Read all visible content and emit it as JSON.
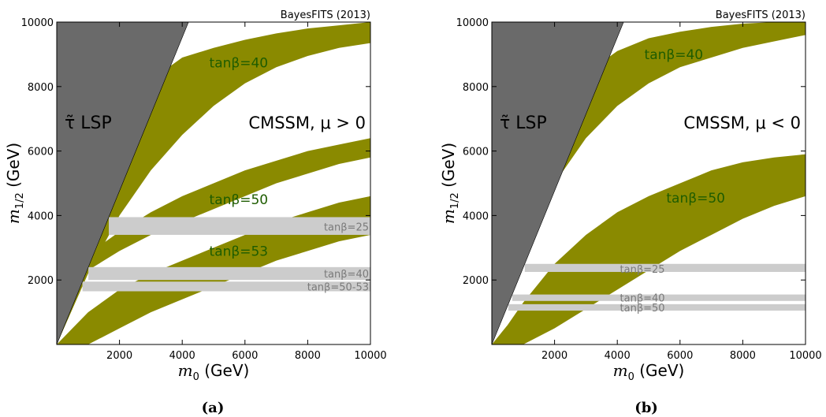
{
  "figure": {
    "source_tag": "BayesFITS (2013)",
    "xlabel": "m_0 (GeV)",
    "ylabel": "m_{1/2} (GeV)"
  },
  "colors": {
    "band": "#8a8a00",
    "band_label": "#1e5c00",
    "stau_region": "#6a6a6a",
    "gray_band": "#cccccc",
    "gray_label": "#7a7a7a"
  },
  "chart_data": [
    {
      "type": "area",
      "panel_label": "(a)",
      "scenario": "CMSSM, μ > 0",
      "xlim": [
        0,
        10000
      ],
      "ylim": [
        0,
        10000
      ],
      "xticks": [
        2000,
        4000,
        6000,
        8000,
        10000
      ],
      "yticks": [
        2000,
        4000,
        6000,
        8000,
        10000
      ],
      "stau_lsp": {
        "label": "τ̃ LSP",
        "boundary": [
          [
            0,
            0
          ],
          [
            4200,
            10000
          ]
        ]
      },
      "olive_bands": [
        {
          "label": "tanβ=40",
          "label_at": [
            5800,
            8600
          ],
          "lower": [
            [
              0,
              0
            ],
            [
              1000,
              2200
            ],
            [
              2000,
              4000
            ],
            [
              3000,
              5400
            ],
            [
              4000,
              6500
            ],
            [
              5000,
              7400
            ],
            [
              6000,
              8100
            ],
            [
              7000,
              8600
            ],
            [
              8000,
              8950
            ],
            [
              9000,
              9200
            ],
            [
              10000,
              9350
            ]
          ],
          "upper": [
            [
              0,
              0
            ],
            [
              500,
              2200
            ],
            [
              1000,
              4100
            ],
            [
              1500,
              5700
            ],
            [
              2000,
              6900
            ],
            [
              3000,
              8200
            ],
            [
              4000,
              8900
            ],
            [
              5000,
              9200
            ],
            [
              6000,
              9450
            ],
            [
              7000,
              9650
            ],
            [
              8000,
              9800
            ],
            [
              9000,
              9900
            ],
            [
              10000,
              10000
            ]
          ]
        },
        {
          "label": "tanβ=50",
          "label_at": [
            5800,
            4350
          ],
          "lower": [
            [
              0,
              0
            ],
            [
              1000,
              2300
            ],
            [
              2000,
              2900
            ],
            [
              3000,
              3400
            ],
            [
              4000,
              3800
            ],
            [
              5000,
              4200
            ],
            [
              6000,
              4600
            ],
            [
              7000,
              5000
            ],
            [
              8000,
              5300
            ],
            [
              9000,
              5600
            ],
            [
              10000,
              5800
            ]
          ],
          "upper": [
            [
              0,
              0
            ],
            [
              200,
              1000
            ],
            [
              500,
              2000
            ],
            [
              1000,
              2800
            ],
            [
              2000,
              3500
            ],
            [
              3000,
              4100
            ],
            [
              4000,
              4600
            ],
            [
              5000,
              5000
            ],
            [
              6000,
              5400
            ],
            [
              7000,
              5700
            ],
            [
              8000,
              6000
            ],
            [
              9000,
              6200
            ],
            [
              10000,
              6400
            ]
          ]
        },
        {
          "label": "tanβ=53",
          "label_at": [
            5800,
            2750
          ],
          "lower": [
            [
              0,
              0
            ],
            [
              1000,
              0
            ],
            [
              2000,
              500
            ],
            [
              3000,
              1000
            ],
            [
              4000,
              1400
            ],
            [
              5000,
              1800
            ],
            [
              6000,
              2200
            ],
            [
              7000,
              2600
            ],
            [
              8000,
              2900
            ],
            [
              9000,
              3200
            ],
            [
              10000,
              3400
            ]
          ],
          "upper": [
            [
              0,
              0
            ],
            [
              500,
              500
            ],
            [
              1000,
              1000
            ],
            [
              2000,
              1700
            ],
            [
              3000,
              2200
            ],
            [
              4000,
              2600
            ],
            [
              5000,
              3000
            ],
            [
              6000,
              3400
            ],
            [
              7000,
              3800
            ],
            [
              8000,
              4100
            ],
            [
              9000,
              4400
            ],
            [
              10000,
              4600
            ]
          ]
        }
      ],
      "gray_bands": [
        {
          "label": "tanβ=25",
          "y0": 3400,
          "y1": 3950,
          "label_at": [
            9400,
            3650
          ]
        },
        {
          "label": "tanβ=40",
          "y0": 2000,
          "y1": 2400,
          "label_at": [
            9400,
            2200
          ]
        },
        {
          "label": "tanβ=50-53",
          "y0": 1650,
          "y1": 1950,
          "label_at": [
            9400,
            1800
          ]
        }
      ]
    },
    {
      "type": "area",
      "panel_label": "(b)",
      "scenario": "CMSSM, μ < 0",
      "xlim": [
        0,
        10000
      ],
      "ylim": [
        0,
        10000
      ],
      "xticks": [
        2000,
        4000,
        6000,
        8000,
        10000
      ],
      "yticks": [
        2000,
        4000,
        6000,
        8000,
        10000
      ],
      "stau_lsp": {
        "label": "τ̃ LSP",
        "boundary": [
          [
            0,
            0
          ],
          [
            4200,
            10000
          ]
        ]
      },
      "olive_bands": [
        {
          "label": "tanβ=40",
          "label_at": [
            5800,
            8850
          ],
          "lower": [
            [
              0,
              0
            ],
            [
              1000,
              3000
            ],
            [
              2000,
              5000
            ],
            [
              3000,
              6400
            ],
            [
              4000,
              7400
            ],
            [
              5000,
              8100
            ],
            [
              6000,
              8600
            ],
            [
              7000,
              8900
            ],
            [
              8000,
              9200
            ],
            [
              9000,
              9400
            ],
            [
              10000,
              9600
            ]
          ],
          "upper": [
            [
              0,
              0
            ],
            [
              500,
              2500
            ],
            [
              1000,
              4500
            ],
            [
              2000,
              7000
            ],
            [
              3000,
              8400
            ],
            [
              4000,
              9100
            ],
            [
              5000,
              9500
            ],
            [
              6000,
              9700
            ],
            [
              7000,
              9850
            ],
            [
              8000,
              9950
            ],
            [
              9000,
              10000
            ],
            [
              10000,
              10000
            ]
          ]
        },
        {
          "label": "tanβ=50",
          "label_at": [
            6500,
            4400
          ],
          "lower": [
            [
              0,
              0
            ],
            [
              1000,
              0
            ],
            [
              2000,
              500
            ],
            [
              3000,
              1100
            ],
            [
              4000,
              1700
            ],
            [
              5000,
              2300
            ],
            [
              6000,
              2900
            ],
            [
              7000,
              3400
            ],
            [
              8000,
              3900
            ],
            [
              9000,
              4300
            ],
            [
              10000,
              4600
            ]
          ],
          "upper": [
            [
              0,
              0
            ],
            [
              500,
              600
            ],
            [
              1000,
              1300
            ],
            [
              2000,
              2500
            ],
            [
              3000,
              3400
            ],
            [
              4000,
              4100
            ],
            [
              5000,
              4600
            ],
            [
              6000,
              5000
            ],
            [
              7000,
              5400
            ],
            [
              8000,
              5650
            ],
            [
              9000,
              5800
            ],
            [
              10000,
              5900
            ]
          ]
        }
      ],
      "gray_bands": [
        {
          "label": "tanβ=25",
          "y0": 2250,
          "y1": 2500,
          "label_at": [
            4800,
            2350
          ]
        },
        {
          "label": "tanβ=40",
          "y0": 1350,
          "y1": 1550,
          "label_at": [
            4800,
            1450
          ]
        },
        {
          "label": "tanβ=50",
          "y0": 1050,
          "y1": 1250,
          "label_at": [
            4800,
            1150
          ]
        }
      ]
    }
  ]
}
